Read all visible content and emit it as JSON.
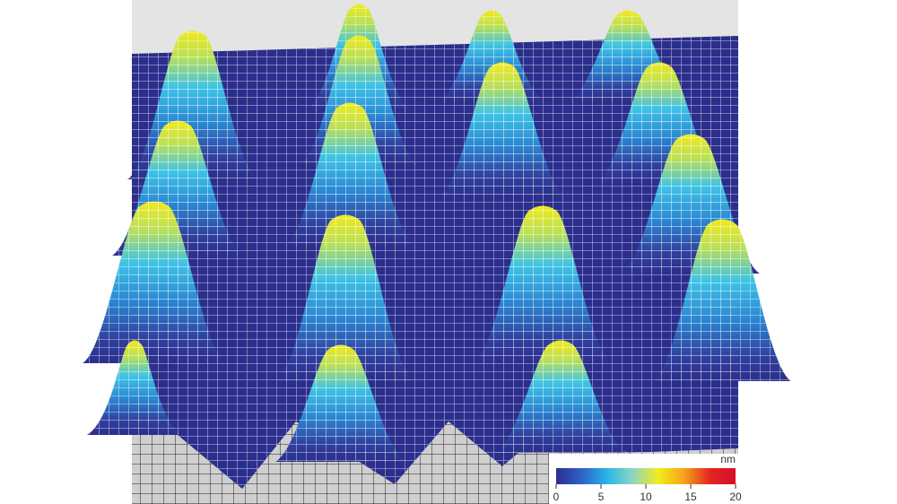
{
  "colorbar": {
    "unit": "nm",
    "lim": [
      0,
      20
    ],
    "ticks": [
      0,
      5,
      10,
      15,
      20
    ],
    "colors": [
      "#2b2e8c",
      "#2f62c8",
      "#29b6e8",
      "#8fd6c0",
      "#f2ec1a",
      "#f5a21c",
      "#e52420",
      "#d4102a"
    ]
  }
}
